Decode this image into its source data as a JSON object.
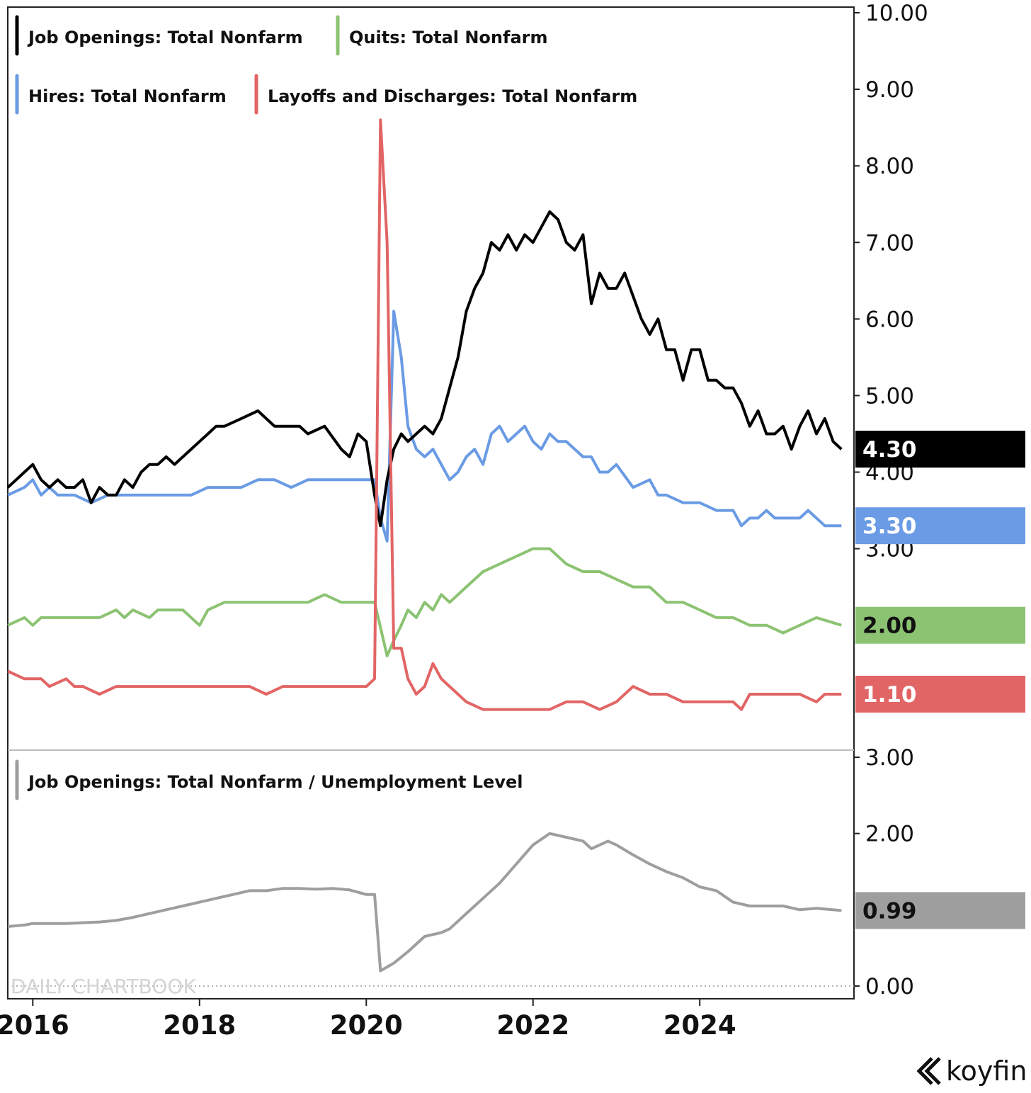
{
  "chart_data": [
    {
      "type": "line",
      "name": "upper-panel",
      "y_axis": {
        "min": 0.6,
        "max": 10.0,
        "ticks": [
          3.0,
          4.0,
          5.0,
          6.0,
          7.0,
          8.0,
          9.0,
          10.0
        ],
        "tick_labels": [
          "3.00",
          "4.00",
          "5.00",
          "6.00",
          "7.00",
          "8.00",
          "9.00",
          "10.00"
        ],
        "side": "right"
      },
      "x_axis": {
        "min": 2015.7,
        "max": 2025.85,
        "ticks": [
          2016,
          2018,
          2020,
          2022,
          2024
        ],
        "tick_labels": [
          "2016",
          "2018",
          "2020",
          "2022",
          "2024"
        ]
      },
      "legend_placement": "top-left",
      "series": [
        {
          "name": "Job Openings: Total Nonfarm",
          "color": "#000000",
          "last_label": "4.30",
          "x": [
            2015.7,
            2015.8,
            2015.9,
            2016.0,
            2016.1,
            2016.2,
            2016.3,
            2016.4,
            2016.5,
            2016.6,
            2016.7,
            2016.8,
            2016.9,
            2017.0,
            2017.1,
            2017.2,
            2017.3,
            2017.4,
            2017.5,
            2017.6,
            2017.7,
            2017.9,
            2018.0,
            2018.1,
            2018.2,
            2018.3,
            2018.5,
            2018.7,
            2018.9,
            2019.0,
            2019.1,
            2019.2,
            2019.3,
            2019.5,
            2019.7,
            2019.8,
            2019.9,
            2020.0,
            2020.1,
            2020.17,
            2020.25,
            2020.33,
            2020.42,
            2020.5,
            2020.6,
            2020.7,
            2020.8,
            2020.9,
            2021.0,
            2021.1,
            2021.2,
            2021.3,
            2021.4,
            2021.5,
            2021.6,
            2021.7,
            2021.8,
            2021.9,
            2022.0,
            2022.1,
            2022.2,
            2022.3,
            2022.4,
            2022.5,
            2022.6,
            2022.7,
            2022.8,
            2022.9,
            2023.0,
            2023.1,
            2023.2,
            2023.3,
            2023.4,
            2023.5,
            2023.6,
            2023.7,
            2023.8,
            2023.9,
            2024.0,
            2024.1,
            2024.2,
            2024.3,
            2024.4,
            2024.5,
            2024.6,
            2024.7,
            2024.8,
            2024.9,
            2025.0,
            2025.1,
            2025.2,
            2025.3,
            2025.4,
            2025.5,
            2025.6,
            2025.7
          ],
          "values": [
            3.8,
            3.9,
            4.0,
            4.1,
            3.9,
            3.8,
            3.9,
            3.8,
            3.8,
            3.9,
            3.6,
            3.8,
            3.7,
            3.7,
            3.9,
            3.8,
            4.0,
            4.1,
            4.1,
            4.2,
            4.1,
            4.3,
            4.4,
            4.5,
            4.6,
            4.6,
            4.7,
            4.8,
            4.6,
            4.6,
            4.6,
            4.6,
            4.5,
            4.6,
            4.3,
            4.2,
            4.5,
            4.4,
            3.7,
            3.3,
            3.9,
            4.3,
            4.5,
            4.4,
            4.5,
            4.6,
            4.5,
            4.7,
            5.1,
            5.5,
            6.1,
            6.4,
            6.6,
            7.0,
            6.9,
            7.1,
            6.9,
            7.1,
            7.0,
            7.2,
            7.4,
            7.3,
            7.0,
            6.9,
            7.1,
            6.2,
            6.6,
            6.4,
            6.4,
            6.6,
            6.3,
            6.0,
            5.8,
            6.0,
            5.6,
            5.6,
            5.2,
            5.6,
            5.6,
            5.2,
            5.2,
            5.1,
            5.1,
            4.9,
            4.6,
            4.8,
            4.5,
            4.5,
            4.6,
            4.3,
            4.6,
            4.8,
            4.5,
            4.7,
            4.4,
            4.3
          ]
        },
        {
          "name": "Quits: Total Nonfarm",
          "color": "#8cc372",
          "last_label": "2.00",
          "x": [
            2015.7,
            2015.9,
            2016.0,
            2016.1,
            2016.2,
            2016.4,
            2016.6,
            2016.8,
            2017.0,
            2017.1,
            2017.2,
            2017.4,
            2017.5,
            2017.6,
            2017.8,
            2018.0,
            2018.1,
            2018.3,
            2018.5,
            2018.7,
            2018.9,
            2019.1,
            2019.3,
            2019.5,
            2019.7,
            2019.9,
            2020.1,
            2020.25,
            2020.33,
            2020.42,
            2020.5,
            2020.6,
            2020.7,
            2020.8,
            2020.9,
            2021.0,
            2021.2,
            2021.4,
            2021.6,
            2021.8,
            2022.0,
            2022.2,
            2022.4,
            2022.6,
            2022.8,
            2023.0,
            2023.2,
            2023.4,
            2023.6,
            2023.8,
            2024.0,
            2024.2,
            2024.4,
            2024.6,
            2024.8,
            2025.0,
            2025.2,
            2025.4,
            2025.7
          ],
          "values": [
            2.0,
            2.1,
            2.0,
            2.1,
            2.1,
            2.1,
            2.1,
            2.1,
            2.2,
            2.1,
            2.2,
            2.1,
            2.2,
            2.2,
            2.2,
            2.0,
            2.2,
            2.3,
            2.3,
            2.3,
            2.3,
            2.3,
            2.3,
            2.4,
            2.3,
            2.3,
            2.3,
            1.6,
            1.8,
            2.0,
            2.2,
            2.1,
            2.3,
            2.2,
            2.4,
            2.3,
            2.5,
            2.7,
            2.8,
            2.9,
            3.0,
            3.0,
            2.8,
            2.7,
            2.7,
            2.6,
            2.5,
            2.5,
            2.3,
            2.3,
            2.2,
            2.1,
            2.1,
            2.0,
            2.0,
            1.9,
            2.0,
            2.1,
            2.0
          ]
        },
        {
          "name": "Hires: Total Nonfarm",
          "color": "#6a9be4",
          "last_label": "3.30",
          "x": [
            2015.7,
            2015.9,
            2016.0,
            2016.1,
            2016.2,
            2016.3,
            2016.5,
            2016.7,
            2016.9,
            2017.1,
            2017.3,
            2017.5,
            2017.7,
            2017.9,
            2018.1,
            2018.3,
            2018.5,
            2018.7,
            2018.9,
            2019.1,
            2019.3,
            2019.5,
            2019.7,
            2019.9,
            2020.1,
            2020.17,
            2020.25,
            2020.33,
            2020.42,
            2020.5,
            2020.6,
            2020.7,
            2020.8,
            2020.9,
            2021.0,
            2021.1,
            2021.2,
            2021.3,
            2021.4,
            2021.5,
            2021.6,
            2021.7,
            2021.8,
            2021.9,
            2022.0,
            2022.1,
            2022.2,
            2022.3,
            2022.4,
            2022.5,
            2022.6,
            2022.7,
            2022.8,
            2022.9,
            2023.0,
            2023.2,
            2023.4,
            2023.5,
            2023.6,
            2023.8,
            2024.0,
            2024.2,
            2024.3,
            2024.4,
            2024.5,
            2024.6,
            2024.7,
            2024.8,
            2024.9,
            2025.0,
            2025.2,
            2025.3,
            2025.5,
            2025.7
          ],
          "values": [
            3.7,
            3.8,
            3.9,
            3.7,
            3.8,
            3.7,
            3.7,
            3.6,
            3.7,
            3.7,
            3.7,
            3.7,
            3.7,
            3.7,
            3.8,
            3.8,
            3.8,
            3.9,
            3.9,
            3.8,
            3.9,
            3.9,
            3.9,
            3.9,
            3.9,
            3.4,
            3.1,
            6.1,
            5.5,
            4.6,
            4.3,
            4.2,
            4.3,
            4.1,
            3.9,
            4.0,
            4.2,
            4.3,
            4.1,
            4.5,
            4.6,
            4.4,
            4.5,
            4.6,
            4.4,
            4.3,
            4.5,
            4.4,
            4.4,
            4.3,
            4.2,
            4.2,
            4.0,
            4.0,
            4.1,
            3.8,
            3.9,
            3.7,
            3.7,
            3.6,
            3.6,
            3.5,
            3.5,
            3.5,
            3.3,
            3.4,
            3.4,
            3.5,
            3.4,
            3.4,
            3.4,
            3.5,
            3.3,
            3.3
          ]
        },
        {
          "name": "Layoffs and Discharges: Total Nonfarm",
          "color": "#e26565",
          "last_label": "1.10",
          "x": [
            2015.7,
            2015.9,
            2016.0,
            2016.1,
            2016.2,
            2016.4,
            2016.5,
            2016.6,
            2016.8,
            2017.0,
            2017.2,
            2017.4,
            2017.6,
            2017.8,
            2018.0,
            2018.2,
            2018.4,
            2018.6,
            2018.8,
            2019.0,
            2019.2,
            2019.4,
            2019.6,
            2019.8,
            2020.0,
            2020.1,
            2020.17,
            2020.25,
            2020.33,
            2020.42,
            2020.5,
            2020.6,
            2020.7,
            2020.8,
            2020.9,
            2021.0,
            2021.2,
            2021.4,
            2021.6,
            2021.8,
            2022.0,
            2022.2,
            2022.4,
            2022.6,
            2022.8,
            2023.0,
            2023.2,
            2023.4,
            2023.6,
            2023.8,
            2024.0,
            2024.2,
            2024.4,
            2024.5,
            2024.6,
            2024.8,
            2025.0,
            2025.2,
            2025.4,
            2025.5,
            2025.7
          ],
          "values": [
            1.4,
            1.3,
            1.3,
            1.3,
            1.2,
            1.3,
            1.2,
            1.2,
            1.1,
            1.2,
            1.2,
            1.2,
            1.2,
            1.2,
            1.2,
            1.2,
            1.2,
            1.2,
            1.1,
            1.2,
            1.2,
            1.2,
            1.2,
            1.2,
            1.2,
            1.3,
            8.6,
            7.0,
            1.7,
            1.7,
            1.3,
            1.1,
            1.2,
            1.5,
            1.3,
            1.2,
            1.0,
            0.9,
            0.9,
            0.9,
            0.9,
            0.9,
            1.0,
            1.0,
            0.9,
            1.0,
            1.2,
            1.1,
            1.1,
            1.0,
            1.0,
            1.0,
            1.0,
            0.9,
            1.1,
            1.1,
            1.1,
            1.1,
            1.0,
            1.1,
            1.1
          ]
        }
      ]
    },
    {
      "type": "line",
      "name": "lower-panel",
      "y_axis": {
        "min": 0.0,
        "max": 3.0,
        "ticks": [
          0.0,
          2.0,
          3.0
        ],
        "tick_labels": [
          "0.00",
          "2.00",
          "3.00"
        ],
        "side": "right",
        "zero_line": "dotted"
      },
      "x_axis": {
        "min": 2015.7,
        "max": 2025.85
      },
      "legend_placement": "top-left",
      "series": [
        {
          "name": "Job Openings: Total Nonfarm / Unemployment Level",
          "color": "#9e9e9e",
          "last_label": "0.99",
          "x": [
            2015.7,
            2015.9,
            2016.0,
            2016.2,
            2016.4,
            2016.6,
            2016.8,
            2017.0,
            2017.2,
            2017.4,
            2017.6,
            2017.8,
            2018.0,
            2018.2,
            2018.4,
            2018.6,
            2018.8,
            2019.0,
            2019.2,
            2019.4,
            2019.6,
            2019.8,
            2020.0,
            2020.1,
            2020.17,
            2020.25,
            2020.33,
            2020.5,
            2020.7,
            2020.9,
            2021.0,
            2021.2,
            2021.4,
            2021.6,
            2021.8,
            2022.0,
            2022.2,
            2022.4,
            2022.6,
            2022.7,
            2022.9,
            2023.0,
            2023.2,
            2023.4,
            2023.6,
            2023.8,
            2024.0,
            2024.2,
            2024.4,
            2024.6,
            2024.8,
            2025.0,
            2025.2,
            2025.4,
            2025.7
          ],
          "values": [
            0.78,
            0.8,
            0.82,
            0.82,
            0.82,
            0.83,
            0.84,
            0.86,
            0.9,
            0.95,
            1.0,
            1.05,
            1.1,
            1.15,
            1.2,
            1.25,
            1.25,
            1.28,
            1.28,
            1.27,
            1.28,
            1.26,
            1.2,
            1.2,
            0.2,
            0.25,
            0.3,
            0.45,
            0.65,
            0.7,
            0.75,
            0.95,
            1.15,
            1.35,
            1.6,
            1.85,
            2.0,
            1.95,
            1.9,
            1.8,
            1.9,
            1.85,
            1.72,
            1.6,
            1.5,
            1.42,
            1.3,
            1.25,
            1.1,
            1.05,
            1.05,
            1.05,
            1.0,
            1.02,
            0.99
          ]
        }
      ]
    }
  ],
  "watermark": "DAILY CHARTBOOK",
  "brand": "koyfin"
}
